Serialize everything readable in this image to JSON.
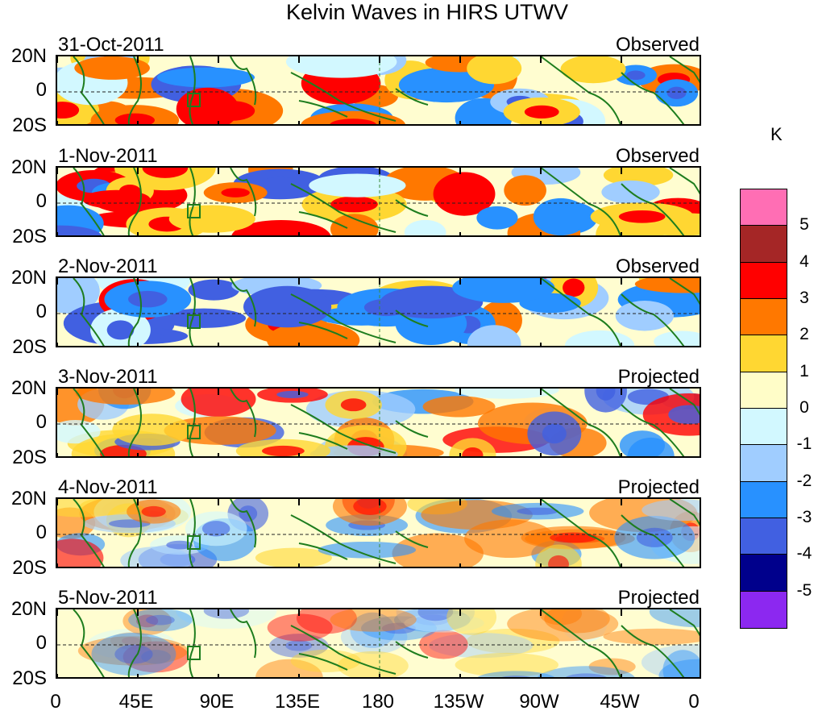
{
  "title": "Kelvin Waves in HIRS UTWV",
  "panels": [
    {
      "date": "31-Oct-2011",
      "type": "Observed"
    },
    {
      "date": "1-Nov-2011",
      "type": "Observed"
    },
    {
      "date": "2-Nov-2011",
      "type": "Observed"
    },
    {
      "date": "3-Nov-2011",
      "type": "Projected"
    },
    {
      "date": "4-Nov-2011",
      "type": "Projected"
    },
    {
      "date": "5-Nov-2011",
      "type": "Projected"
    }
  ],
  "lat_labels": [
    "20N",
    "0",
    "20S"
  ],
  "lon_labels": [
    "0",
    "45E",
    "90E",
    "135E",
    "180",
    "135W",
    "90W",
    "45W",
    "0"
  ],
  "colorbar": {
    "unit": "K",
    "labels": [
      "5",
      "4",
      "3",
      "2",
      "1",
      "0",
      "-1",
      "-2",
      "-3",
      "-4",
      "-5"
    ],
    "colors": [
      "#ff6eb4",
      "#a52626",
      "#ff0000",
      "#ff7800",
      "#ffd732",
      "#fffdc8",
      "#d2f8ff",
      "#a0cdff",
      "#2891ff",
      "#4160e1",
      "#00008c",
      "#8c28f0"
    ]
  }
}
